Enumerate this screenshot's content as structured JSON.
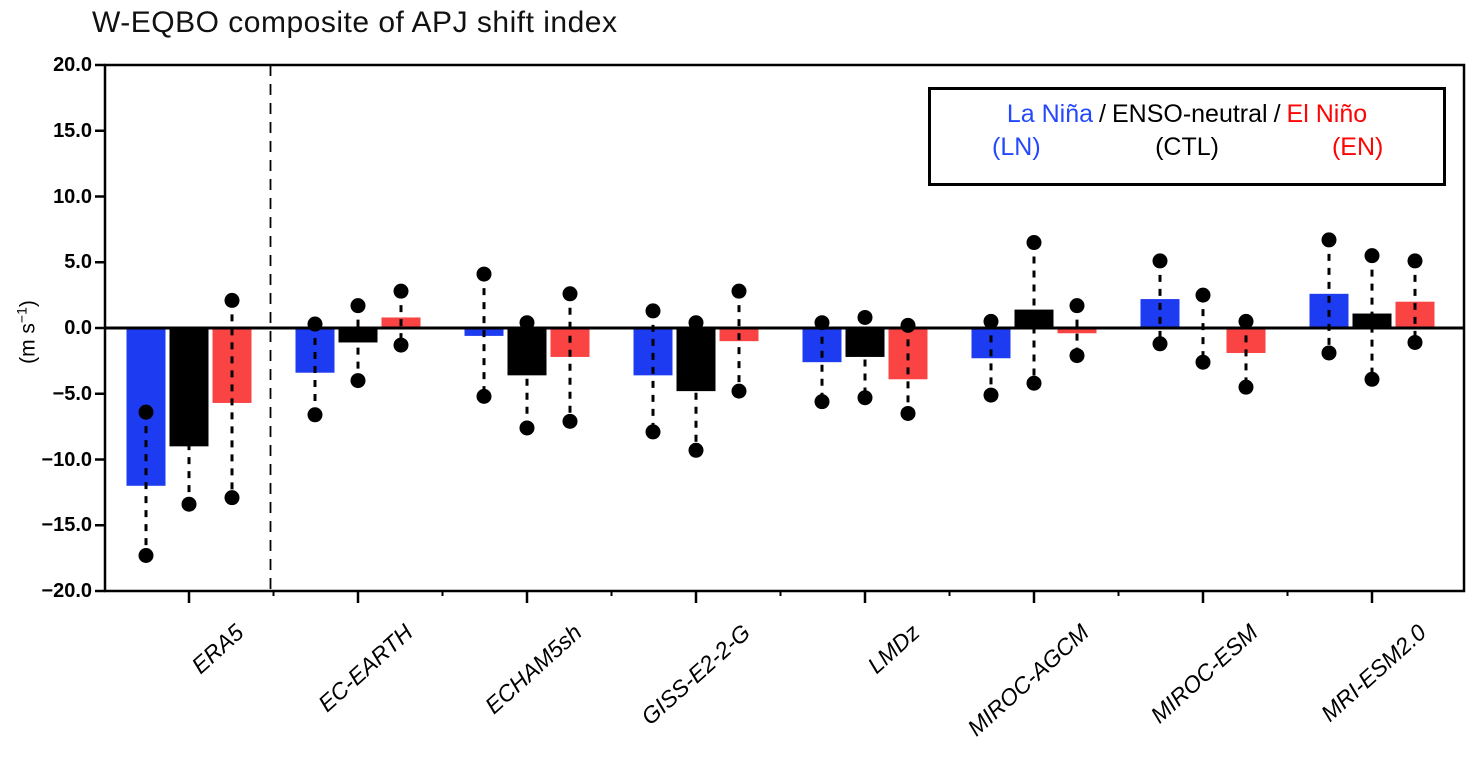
{
  "title": "W-EQBO composite of APJ shift index",
  "legend": {
    "row1": [
      {
        "text": "La Niña",
        "color": "#2448ff"
      },
      {
        "text": "/",
        "color": "#000000"
      },
      {
        "text": "ENSO-neutral",
        "color": "#000000"
      },
      {
        "text": "/",
        "color": "#000000"
      },
      {
        "text": "El Niño",
        "color": "#fe0505"
      }
    ],
    "row2": [
      {
        "text": "(LN)",
        "color": "#2448ff"
      },
      {
        "text": "(CTL)",
        "color": "#000000"
      },
      {
        "text": "(EN)",
        "color": "#fe0505"
      }
    ]
  },
  "colors": {
    "la_nina_bar": "#1d3bf0",
    "ctl_bar": "#000000",
    "el_nino_bar": "#fa4343",
    "axis": "#000000"
  },
  "chart_data": {
    "type": "bar",
    "title": "W-EQBO composite of APJ shift index",
    "ylabel_prefix": "(m s",
    "ylabel_sup": "−1",
    "ylabel_suffix": ")",
    "ylim": [
      -20,
      20
    ],
    "ytick_step": 5,
    "ytick_labels": [
      "20.0",
      "15.0",
      "10.0",
      "5.0",
      "0.0",
      "−5.0",
      "−10.0",
      "−15.0",
      "−20.0"
    ],
    "grid": "off",
    "legend_position": "top-right",
    "separator_after_category": "ERA5",
    "categories": [
      "ERA5",
      "EC-EARTH",
      "ECHAM5sh",
      "GISS-E2-2-G",
      "LMDz",
      "MIROC-AGCM",
      "MIROC-ESM",
      "MRI-ESM2.0"
    ],
    "series": [
      {
        "key": "LN",
        "name": "La Niña (LN)",
        "color": "#1d3bf0",
        "values": [
          -12.0,
          -3.4,
          -0.6,
          -3.6,
          -2.6,
          -2.3,
          2.2,
          2.6
        ],
        "whisker_high": [
          -6.4,
          0.3,
          4.1,
          1.3,
          0.4,
          0.5,
          5.1,
          6.7
        ],
        "whisker_low": [
          -17.3,
          -6.6,
          -5.2,
          -7.9,
          -5.6,
          -5.1,
          -1.2,
          -1.9
        ]
      },
      {
        "key": "CTL",
        "name": "ENSO-neutral (CTL)",
        "color": "#000000",
        "values": [
          -9.0,
          -1.1,
          -3.6,
          -4.8,
          -2.2,
          1.4,
          0.0,
          1.1
        ],
        "whisker_high": [
          -4.5,
          1.7,
          0.4,
          0.4,
          0.8,
          6.5,
          2.5,
          5.5
        ],
        "whisker_low": [
          -13.4,
          -4.0,
          -7.6,
          -9.3,
          -5.3,
          -4.2,
          -2.6,
          -3.9
        ]
      },
      {
        "key": "EN",
        "name": "El Niño (EN)",
        "color": "#fa4343",
        "values": [
          -5.7,
          0.8,
          -2.2,
          -1.0,
          -3.9,
          -0.4,
          -1.9,
          2.0
        ],
        "whisker_high": [
          2.1,
          2.8,
          2.6,
          2.8,
          0.2,
          1.7,
          0.5,
          5.1
        ],
        "whisker_low": [
          -12.9,
          -1.3,
          -7.1,
          -4.8,
          -6.5,
          -2.1,
          -4.5,
          -1.1
        ]
      }
    ]
  }
}
